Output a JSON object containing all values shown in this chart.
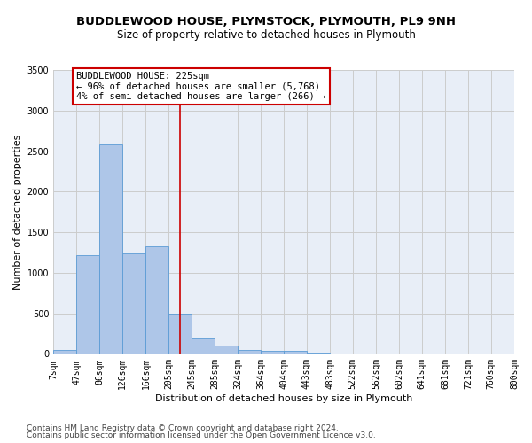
{
  "title": "BUDDLEWOOD HOUSE, PLYMSTOCK, PLYMOUTH, PL9 9NH",
  "subtitle": "Size of property relative to detached houses in Plymouth",
  "xlabel": "Distribution of detached houses by size in Plymouth",
  "ylabel": "Number of detached properties",
  "bin_edges": [
    7,
    47,
    86,
    126,
    166,
    205,
    245,
    285,
    324,
    364,
    404,
    443,
    483,
    522,
    562,
    602,
    641,
    681,
    721,
    760,
    800
  ],
  "bar_heights": [
    50,
    1220,
    2580,
    1240,
    1330,
    490,
    185,
    105,
    50,
    40,
    35,
    10,
    5,
    0,
    0,
    0,
    0,
    0,
    0,
    0
  ],
  "bar_color": "#aec6e8",
  "bar_edge_color": "#5b9bd5",
  "vline_x": 225,
  "vline_color": "#cc0000",
  "annotation_line1": "BUDDLEWOOD HOUSE: 225sqm",
  "annotation_line2": "← 96% of detached houses are smaller (5,768)",
  "annotation_line3": "4% of semi-detached houses are larger (266) →",
  "annotation_box_color": "#ffffff",
  "annotation_box_edge_color": "#cc0000",
  "ylim": [
    0,
    3500
  ],
  "yticks": [
    0,
    500,
    1000,
    1500,
    2000,
    2500,
    3000,
    3500
  ],
  "xtick_labels": [
    "7sqm",
    "47sqm",
    "86sqm",
    "126sqm",
    "166sqm",
    "205sqm",
    "245sqm",
    "285sqm",
    "324sqm",
    "364sqm",
    "404sqm",
    "443sqm",
    "483sqm",
    "522sqm",
    "562sqm",
    "602sqm",
    "641sqm",
    "681sqm",
    "721sqm",
    "760sqm",
    "800sqm"
  ],
  "grid_color": "#cccccc",
  "background_color": "#e8eef7",
  "footer_line1": "Contains HM Land Registry data © Crown copyright and database right 2024.",
  "footer_line2": "Contains public sector information licensed under the Open Government Licence v3.0.",
  "title_fontsize": 9.5,
  "subtitle_fontsize": 8.5,
  "xlabel_fontsize": 8,
  "ylabel_fontsize": 8,
  "tick_fontsize": 7,
  "footer_fontsize": 6.5,
  "annotation_fontsize": 7.5
}
